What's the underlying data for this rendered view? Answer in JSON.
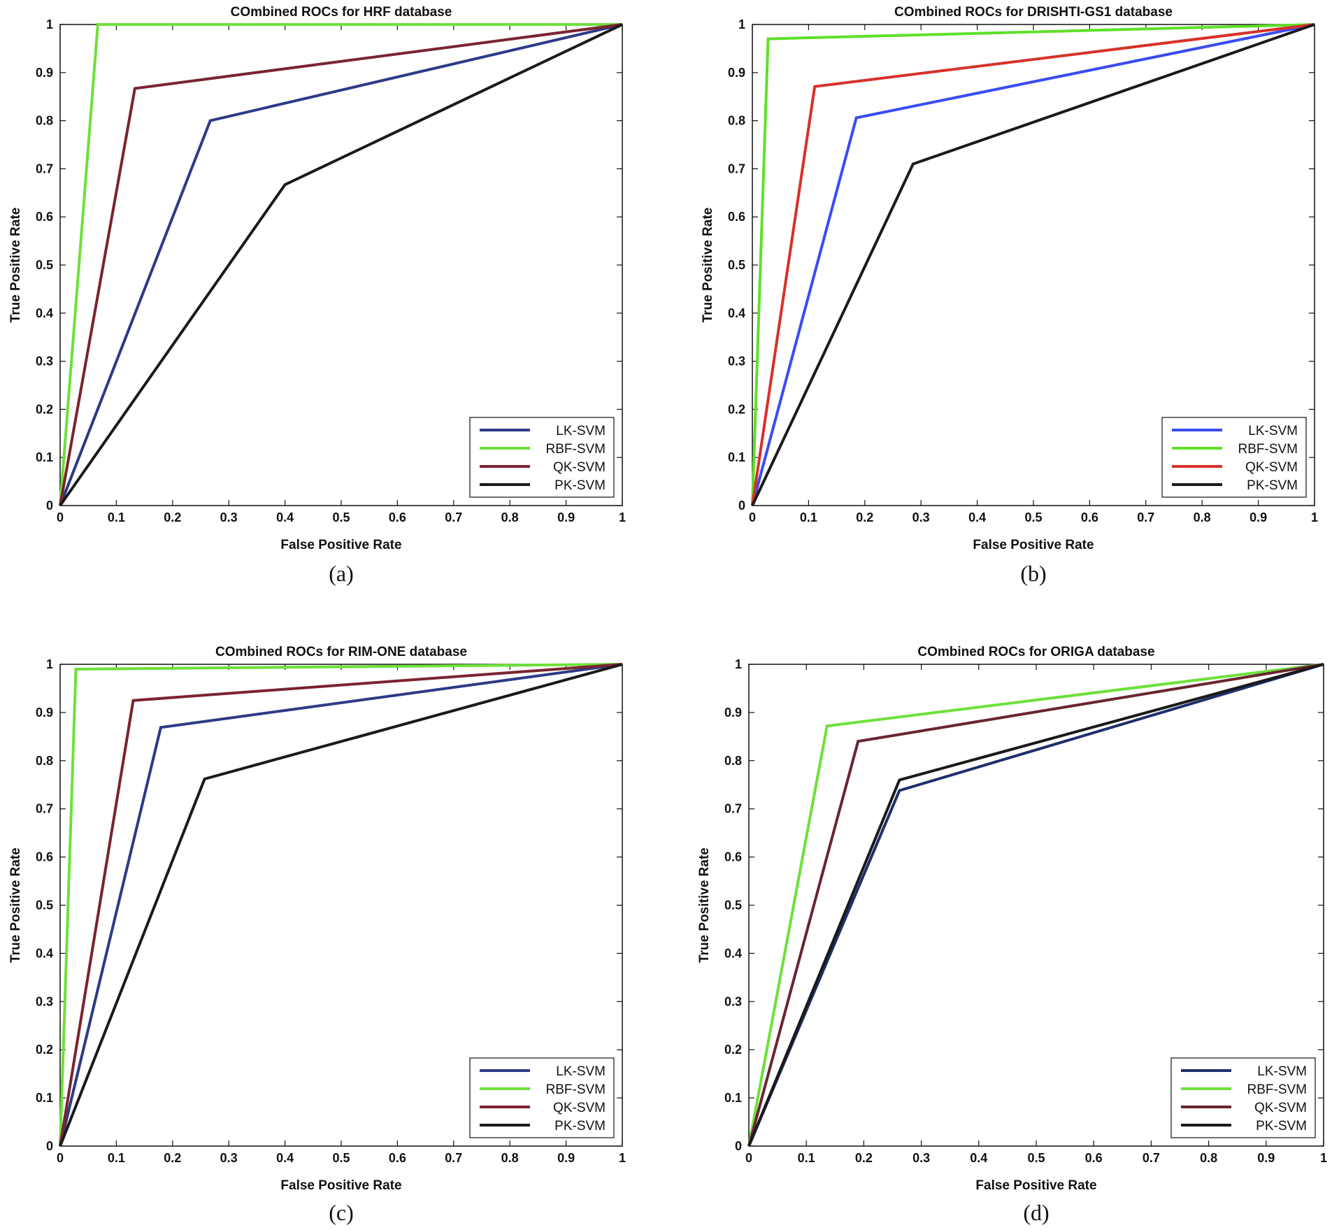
{
  "chart_data": [
    {
      "type": "line",
      "title": "COmbined ROCs for HRF database",
      "xlabel": "False Positive Rate",
      "ylabel": "True Positive Rate",
      "caption": "(a)",
      "xlim": [
        0,
        1
      ],
      "ylim": [
        0,
        1
      ],
      "xticks": [
        "0",
        "0.1",
        "0.2",
        "0.3",
        "0.4",
        "0.5",
        "0.6",
        "0.7",
        "0.8",
        "0.9",
        "1"
      ],
      "yticks": [
        "0",
        "0.1",
        "0.2",
        "0.3",
        "0.4",
        "0.5",
        "0.6",
        "0.7",
        "0.8",
        "0.9",
        "1"
      ],
      "legend_position": "bottom-right",
      "series": [
        {
          "name": "LK-SVM",
          "color": "#2e3a87",
          "x": [
            0,
            0.267,
            1
          ],
          "y": [
            0,
            0.8,
            1
          ]
        },
        {
          "name": "RBF-SVM",
          "color": "#6ee03a",
          "x": [
            0,
            0.067,
            1
          ],
          "y": [
            0,
            1,
            1
          ]
        },
        {
          "name": "QK-SVM",
          "color": "#7a2430",
          "x": [
            0,
            0.133,
            1
          ],
          "y": [
            0,
            0.867,
            1
          ]
        },
        {
          "name": "PK-SVM",
          "color": "#1a1a1a",
          "x": [
            0,
            0.4,
            1
          ],
          "y": [
            0,
            0.667,
            1
          ]
        }
      ]
    },
    {
      "type": "line",
      "title": "COmbined ROCs for DRISHTI-GS1 database",
      "xlabel": "False Positive Rate",
      "ylabel": "True Positive Rate",
      "caption": "(b)",
      "xlim": [
        0,
        1
      ],
      "ylim": [
        0,
        1
      ],
      "xticks": [
        "0",
        "0.1",
        "0.2",
        "0.3",
        "0.4",
        "0.5",
        "0.6",
        "0.7",
        "0.8",
        "0.9",
        "1"
      ],
      "yticks": [
        "0",
        "0.1",
        "0.2",
        "0.3",
        "0.4",
        "0.5",
        "0.6",
        "0.7",
        "0.8",
        "0.9",
        "1"
      ],
      "legend_position": "bottom-right",
      "series": [
        {
          "name": "LK-SVM",
          "color": "#3a4cf0",
          "x": [
            0,
            0.185,
            1
          ],
          "y": [
            0,
            0.806,
            1
          ]
        },
        {
          "name": "RBF-SVM",
          "color": "#5fe02a",
          "x": [
            0,
            0.028,
            1
          ],
          "y": [
            0,
            0.97,
            1
          ]
        },
        {
          "name": "QK-SVM",
          "color": "#d9302a",
          "x": [
            0,
            0.111,
            1
          ],
          "y": [
            0,
            0.871,
            1
          ]
        },
        {
          "name": "PK-SVM",
          "color": "#1a1a1a",
          "x": [
            0,
            0.286,
            1
          ],
          "y": [
            0,
            0.71,
            1
          ]
        }
      ]
    },
    {
      "type": "line",
      "title": "COmbined ROCs for RIM-ONE database",
      "xlabel": "False Positive Rate",
      "ylabel": "True Positive Rate",
      "caption": "(c)",
      "xlim": [
        0,
        1
      ],
      "ylim": [
        0,
        1
      ],
      "xticks": [
        "0",
        "0.1",
        "0.2",
        "0.3",
        "0.4",
        "0.5",
        "0.6",
        "0.7",
        "0.8",
        "0.9",
        "1"
      ],
      "yticks": [
        "0",
        "0.1",
        "0.2",
        "0.3",
        "0.4",
        "0.5",
        "0.6",
        "0.7",
        "0.8",
        "0.9",
        "1"
      ],
      "legend_position": "bottom-right",
      "series": [
        {
          "name": "LK-SVM",
          "color": "#2e3a87",
          "x": [
            0,
            0.179,
            1
          ],
          "y": [
            0,
            0.869,
            1
          ]
        },
        {
          "name": "RBF-SVM",
          "color": "#6ee03a",
          "x": [
            0,
            0.028,
            1
          ],
          "y": [
            0,
            0.99,
            1
          ]
        },
        {
          "name": "QK-SVM",
          "color": "#7a2430",
          "x": [
            0,
            0.13,
            1
          ],
          "y": [
            0,
            0.925,
            1
          ]
        },
        {
          "name": "PK-SVM",
          "color": "#1a1a1a",
          "x": [
            0,
            0.257,
            1
          ],
          "y": [
            0,
            0.762,
            1
          ]
        }
      ]
    },
    {
      "type": "line",
      "title": "COmbined ROCs for ORIGA database",
      "xlabel": "False Positive Rate",
      "ylabel": "True Positive Rate",
      "caption": "(d)",
      "xlim": [
        0,
        1
      ],
      "ylim": [
        0,
        1
      ],
      "xticks": [
        "0",
        "0.1",
        "0.2",
        "0.3",
        "0.4",
        "0.5",
        "0.6",
        "0.7",
        "0.8",
        "0.9",
        "1"
      ],
      "yticks": [
        "0",
        "0.1",
        "0.2",
        "0.3",
        "0.4",
        "0.5",
        "0.6",
        "0.7",
        "0.8",
        "0.9",
        "1"
      ],
      "legend_position": "bottom-right",
      "series": [
        {
          "name": "LK-SVM",
          "color": "#1f2f6b",
          "x": [
            0,
            0.262,
            1
          ],
          "y": [
            0,
            0.738,
            1
          ]
        },
        {
          "name": "RBF-SVM",
          "color": "#6ee03a",
          "x": [
            0,
            0.136,
            1
          ],
          "y": [
            0,
            0.872,
            1
          ]
        },
        {
          "name": "QK-SVM",
          "color": "#6a2530",
          "x": [
            0,
            0.19,
            1
          ],
          "y": [
            0,
            0.84,
            1
          ]
        },
        {
          "name": "PK-SVM",
          "color": "#1a1a1a",
          "x": [
            0,
            0.262,
            1
          ],
          "y": [
            0,
            0.76,
            1
          ]
        }
      ]
    }
  ]
}
